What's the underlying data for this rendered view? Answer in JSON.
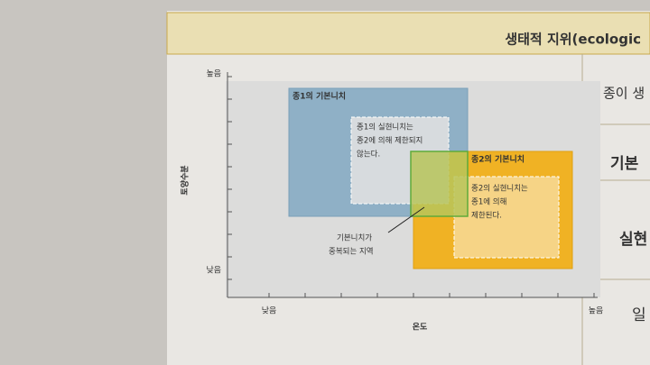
{
  "header": {
    "title": "생태적 지위(ecologic"
  },
  "diagram": {
    "y_axis": {
      "label": "토양수분",
      "high": "높음",
      "low": "낮음"
    },
    "x_axis": {
      "label": "온도",
      "low": "낮음",
      "high": "높음"
    },
    "species1_fundamental": "종1의 기본니치",
    "species1_realized": [
      "종1의 실현니치는",
      "종2에 의해 제한되지",
      "않는다."
    ],
    "species2_fundamental": "종2의 기본니치",
    "species2_realized": [
      "종2의 실현니치는",
      "종1에 의해",
      "제한된다."
    ],
    "overlap": [
      "기본니치가",
      "중복되는 지역"
    ]
  },
  "table": {
    "rows": [
      "종이 생",
      "기본",
      "실현",
      "일"
    ]
  }
}
